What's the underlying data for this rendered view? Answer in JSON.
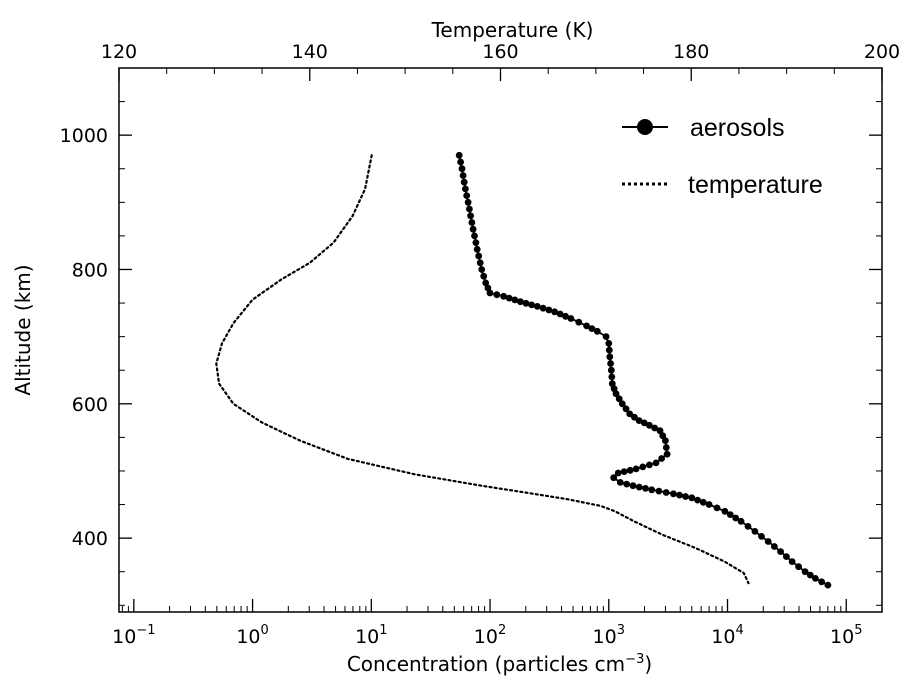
{
  "chart_data": {
    "type": "line",
    "x_bottom": {
      "label": "Concentration  (particles cm",
      "label_sup": "−3",
      "label_close": ")",
      "scale": "log",
      "range": [
        0.075,
        200000
      ],
      "ticks": [
        {
          "value": 0.1,
          "base": "10",
          "exp": "−1"
        },
        {
          "value": 1,
          "base": "10",
          "exp": "0"
        },
        {
          "value": 10,
          "base": "10",
          "exp": "1"
        },
        {
          "value": 100,
          "base": "10",
          "exp": "2"
        },
        {
          "value": 1000,
          "base": "10",
          "exp": "3"
        },
        {
          "value": 10000,
          "base": "10",
          "exp": "4"
        },
        {
          "value": 100000,
          "base": "10",
          "exp": "5"
        }
      ]
    },
    "x_top": {
      "label": "Temperature   (K)",
      "scale": "linear",
      "range": [
        120,
        200
      ],
      "ticks": [
        120,
        140,
        160,
        180,
        200
      ]
    },
    "y": {
      "label": "Altitude  (km)",
      "range": [
        290,
        1100
      ],
      "ticks": [
        400,
        600,
        800,
        1000
      ]
    },
    "legend": {
      "placement": "top-right",
      "entries": [
        "aerosols",
        "temperature"
      ]
    },
    "series": [
      {
        "name": "aerosols",
        "axis": "bottom",
        "style": "solid line with filled circle markers",
        "points": [
          [
            55,
            970
          ],
          [
            58,
            950
          ],
          [
            62,
            920
          ],
          [
            67,
            890
          ],
          [
            72,
            860
          ],
          [
            78,
            830
          ],
          [
            85,
            800
          ],
          [
            92,
            780
          ],
          [
            100,
            765
          ],
          [
            130,
            760
          ],
          [
            180,
            752
          ],
          [
            250,
            745
          ],
          [
            350,
            737
          ],
          [
            480,
            727
          ],
          [
            650,
            716
          ],
          [
            800,
            708
          ],
          [
            950,
            700
          ],
          [
            1000,
            690
          ],
          [
            1020,
            670
          ],
          [
            1050,
            650
          ],
          [
            1070,
            630
          ],
          [
            1150,
            615
          ],
          [
            1300,
            600
          ],
          [
            1500,
            585
          ],
          [
            1800,
            575
          ],
          [
            2200,
            568
          ],
          [
            2700,
            560
          ],
          [
            3000,
            545
          ],
          [
            3100,
            525
          ],
          [
            2500,
            512
          ],
          [
            1700,
            503
          ],
          [
            1200,
            497
          ],
          [
            1100,
            490
          ],
          [
            1250,
            483
          ],
          [
            1600,
            478
          ],
          [
            2300,
            472
          ],
          [
            3500,
            466
          ],
          [
            5000,
            460
          ],
          [
            7000,
            450
          ],
          [
            9500,
            440
          ],
          [
            13000,
            425
          ],
          [
            17000,
            410
          ],
          [
            22000,
            395
          ],
          [
            28000,
            380
          ],
          [
            35000,
            365
          ],
          [
            45000,
            350
          ],
          [
            55000,
            340
          ],
          [
            70000,
            330
          ]
        ]
      },
      {
        "name": "temperature",
        "axis": "top",
        "style": "dotted line",
        "points": [
          [
            146.5,
            970
          ],
          [
            145.8,
            920
          ],
          [
            144.5,
            880
          ],
          [
            142.5,
            840
          ],
          [
            140,
            810
          ],
          [
            137,
            785
          ],
          [
            134,
            755
          ],
          [
            132,
            720
          ],
          [
            130.8,
            690
          ],
          [
            130.2,
            660
          ],
          [
            130.5,
            630
          ],
          [
            132,
            600
          ],
          [
            135,
            572
          ],
          [
            139,
            545
          ],
          [
            144,
            518
          ],
          [
            151,
            495
          ],
          [
            158,
            478
          ],
          [
            163,
            467
          ],
          [
            167,
            458
          ],
          [
            170.5,
            448
          ],
          [
            172,
            440
          ],
          [
            174,
            425
          ],
          [
            177,
            405
          ],
          [
            180.5,
            385
          ],
          [
            183.5,
            365
          ],
          [
            185.5,
            348
          ],
          [
            186,
            333
          ]
        ]
      }
    ]
  }
}
